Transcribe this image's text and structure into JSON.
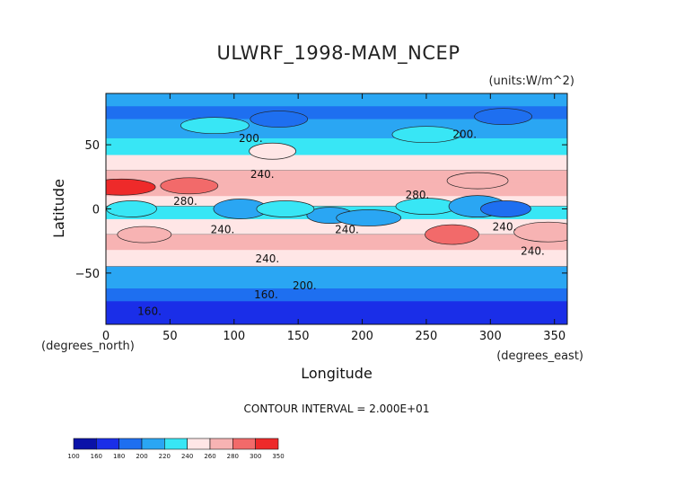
{
  "chart_data": {
    "type": "heatmap",
    "title": "ULWRF_1998-MAM_NCEP",
    "units_label": "(units:W/m^2)",
    "xlabel": "Longitude",
    "ylabel": "Latitude",
    "x_unit_label": "(degrees_east)",
    "y_unit_label": "(degrees_north)",
    "xlim": [
      0,
      360
    ],
    "ylim": [
      -90,
      90
    ],
    "x_ticks": [
      0,
      50,
      100,
      150,
      200,
      250,
      300,
      350
    ],
    "y_ticks": [
      -50,
      0,
      50
    ],
    "contour_interval_text": "CONTOUR INTERVAL = 2.000E+01",
    "contour_labels": [
      {
        "text": "200.",
        "lon": 113,
        "lat": 55
      },
      {
        "text": "200.",
        "lon": 280,
        "lat": 58
      },
      {
        "text": "240.",
        "lon": 122,
        "lat": 27
      },
      {
        "text": "280.",
        "lon": 62,
        "lat": 6
      },
      {
        "text": "280.",
        "lon": 243,
        "lat": 11
      },
      {
        "text": "240.",
        "lon": 91,
        "lat": -16
      },
      {
        "text": "240.",
        "lon": 188,
        "lat": -16
      },
      {
        "text": "240.",
        "lon": 333,
        "lat": -33
      },
      {
        "text": "240.",
        "lon": 311,
        "lat": -14
      },
      {
        "text": "240.",
        "lon": 126,
        "lat": -39
      },
      {
        "text": "200.",
        "lon": 155,
        "lat": -60
      },
      {
        "text": "160.",
        "lon": 125,
        "lat": -67
      },
      {
        "text": "160.",
        "lon": 34,
        "lat": -80
      }
    ],
    "colorbar": {
      "levels": [
        "100",
        "160",
        "180",
        "200",
        "220",
        "240",
        "260",
        "280",
        "300",
        "350"
      ],
      "colors": [
        "#0a12a8",
        "#1a2ee8",
        "#1e6ff0",
        "#2aa6f3",
        "#38e6f5",
        "#ffe6e6",
        "#f7b3b3",
        "#f26a6a",
        "#ee2a2a"
      ]
    },
    "bands": [
      {
        "lat": 90,
        "value": 200
      },
      {
        "lat": 80,
        "value": 190
      },
      {
        "lat": 70,
        "value": 210
      },
      {
        "lat": 55,
        "value": 225
      },
      {
        "lat": 42,
        "value": 240
      },
      {
        "lat": 30,
        "value": 265
      },
      {
        "lat": 20,
        "value": 275
      },
      {
        "lat": 10,
        "value": 255
      },
      {
        "lat": 2,
        "value": 232
      },
      {
        "lat": -8,
        "value": 245
      },
      {
        "lat": -20,
        "value": 270
      },
      {
        "lat": -32,
        "value": 245
      },
      {
        "lat": -45,
        "value": 215
      },
      {
        "lat": -55,
        "value": 205
      },
      {
        "lat": -62,
        "value": 190
      },
      {
        "lat": -72,
        "value": 170
      },
      {
        "lat": -90,
        "value": 150
      }
    ],
    "regions": [
      {
        "lon": 12,
        "lat": 17,
        "value": 300
      },
      {
        "lon": 65,
        "lat": 18,
        "value": 290
      },
      {
        "lon": 30,
        "lat": -20,
        "value": 275
      },
      {
        "lon": 270,
        "lat": -20,
        "value": 282
      },
      {
        "lon": 345,
        "lat": -18,
        "value": 272
      },
      {
        "lon": 290,
        "lat": 22,
        "value": 270
      },
      {
        "lon": 175,
        "lat": -5,
        "value": 210
      },
      {
        "lon": 205,
        "lat": -7,
        "value": 215
      },
      {
        "lon": 250,
        "lat": 2,
        "value": 235
      },
      {
        "lon": 290,
        "lat": 2,
        "value": 213
      },
      {
        "lon": 312,
        "lat": 0,
        "value": 190
      },
      {
        "lon": 20,
        "lat": 0,
        "value": 225
      },
      {
        "lon": 105,
        "lat": 0,
        "value": 212
      },
      {
        "lon": 140,
        "lat": 0,
        "value": 220
      },
      {
        "lon": 85,
        "lat": 65,
        "value": 230
      },
      {
        "lon": 250,
        "lat": 58,
        "value": 230
      },
      {
        "lon": 135,
        "lat": 70,
        "value": 185
      },
      {
        "lon": 310,
        "lat": 72,
        "value": 185
      },
      {
        "lon": 130,
        "lat": 45,
        "value": 245
      }
    ]
  }
}
